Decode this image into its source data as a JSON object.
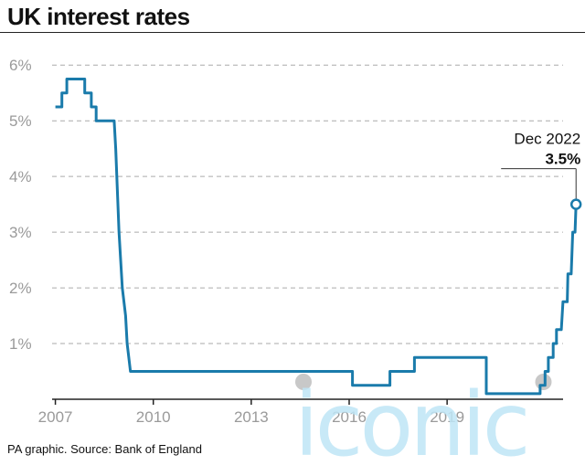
{
  "chart_data": {
    "type": "line",
    "title": "UK interest rates",
    "xlabel": "",
    "ylabel": "",
    "x_ticks": [
      "2007",
      "2010",
      "2013",
      "2016",
      "2019"
    ],
    "y_ticks": [
      "1%",
      "2%",
      "3%",
      "4%",
      "5%",
      "6%"
    ],
    "xlim": [
      2006.9,
      2023.0
    ],
    "ylim": [
      0,
      6.25
    ],
    "grid": true,
    "line_color": "#1a7bab",
    "series": [
      {
        "values": [
          [
            2007.0,
            5.25
          ],
          [
            2007.2,
            5.25
          ],
          [
            2007.2,
            5.5
          ],
          [
            2007.35,
            5.5
          ],
          [
            2007.35,
            5.75
          ],
          [
            2007.9,
            5.75
          ],
          [
            2007.9,
            5.5
          ],
          [
            2008.1,
            5.5
          ],
          [
            2008.1,
            5.25
          ],
          [
            2008.25,
            5.25
          ],
          [
            2008.25,
            5.0
          ],
          [
            2008.8,
            5.0
          ],
          [
            2008.85,
            4.5
          ],
          [
            2008.95,
            3.0
          ],
          [
            2009.05,
            2.0
          ],
          [
            2009.15,
            1.5
          ],
          [
            2009.2,
            1.0
          ],
          [
            2009.3,
            0.5
          ],
          [
            2016.1,
            0.5
          ],
          [
            2016.1,
            0.25
          ],
          [
            2017.25,
            0.25
          ],
          [
            2017.25,
            0.5
          ],
          [
            2018.0,
            0.5
          ],
          [
            2018.0,
            0.75
          ],
          [
            2020.2,
            0.75
          ],
          [
            2020.2,
            0.1
          ],
          [
            2021.85,
            0.1
          ],
          [
            2021.85,
            0.25
          ],
          [
            2022.0,
            0.25
          ],
          [
            2022.0,
            0.5
          ],
          [
            2022.1,
            0.5
          ],
          [
            2022.1,
            0.75
          ],
          [
            2022.25,
            0.75
          ],
          [
            2022.25,
            1.0
          ],
          [
            2022.35,
            1.0
          ],
          [
            2022.35,
            1.25
          ],
          [
            2022.5,
            1.25
          ],
          [
            2022.55,
            1.75
          ],
          [
            2022.68,
            1.75
          ],
          [
            2022.7,
            2.25
          ],
          [
            2022.8,
            2.25
          ],
          [
            2022.85,
            3.0
          ],
          [
            2022.92,
            3.0
          ],
          [
            2022.95,
            3.5
          ]
        ]
      }
    ],
    "annotation": {
      "date": "Dec 2022",
      "value": "3.5%",
      "x": 2022.95,
      "y": 3.5
    },
    "markers": [
      {
        "x": 2014.6,
        "y": 0,
        "color": "#c8c8c8"
      },
      {
        "x": 2021.95,
        "y": 0,
        "color": "#c8c8c8"
      }
    ]
  },
  "footer": {
    "source": "PA graphic. Source: Bank of England"
  },
  "watermark": {
    "text": "iconic",
    "color": "#bfe6f6"
  }
}
